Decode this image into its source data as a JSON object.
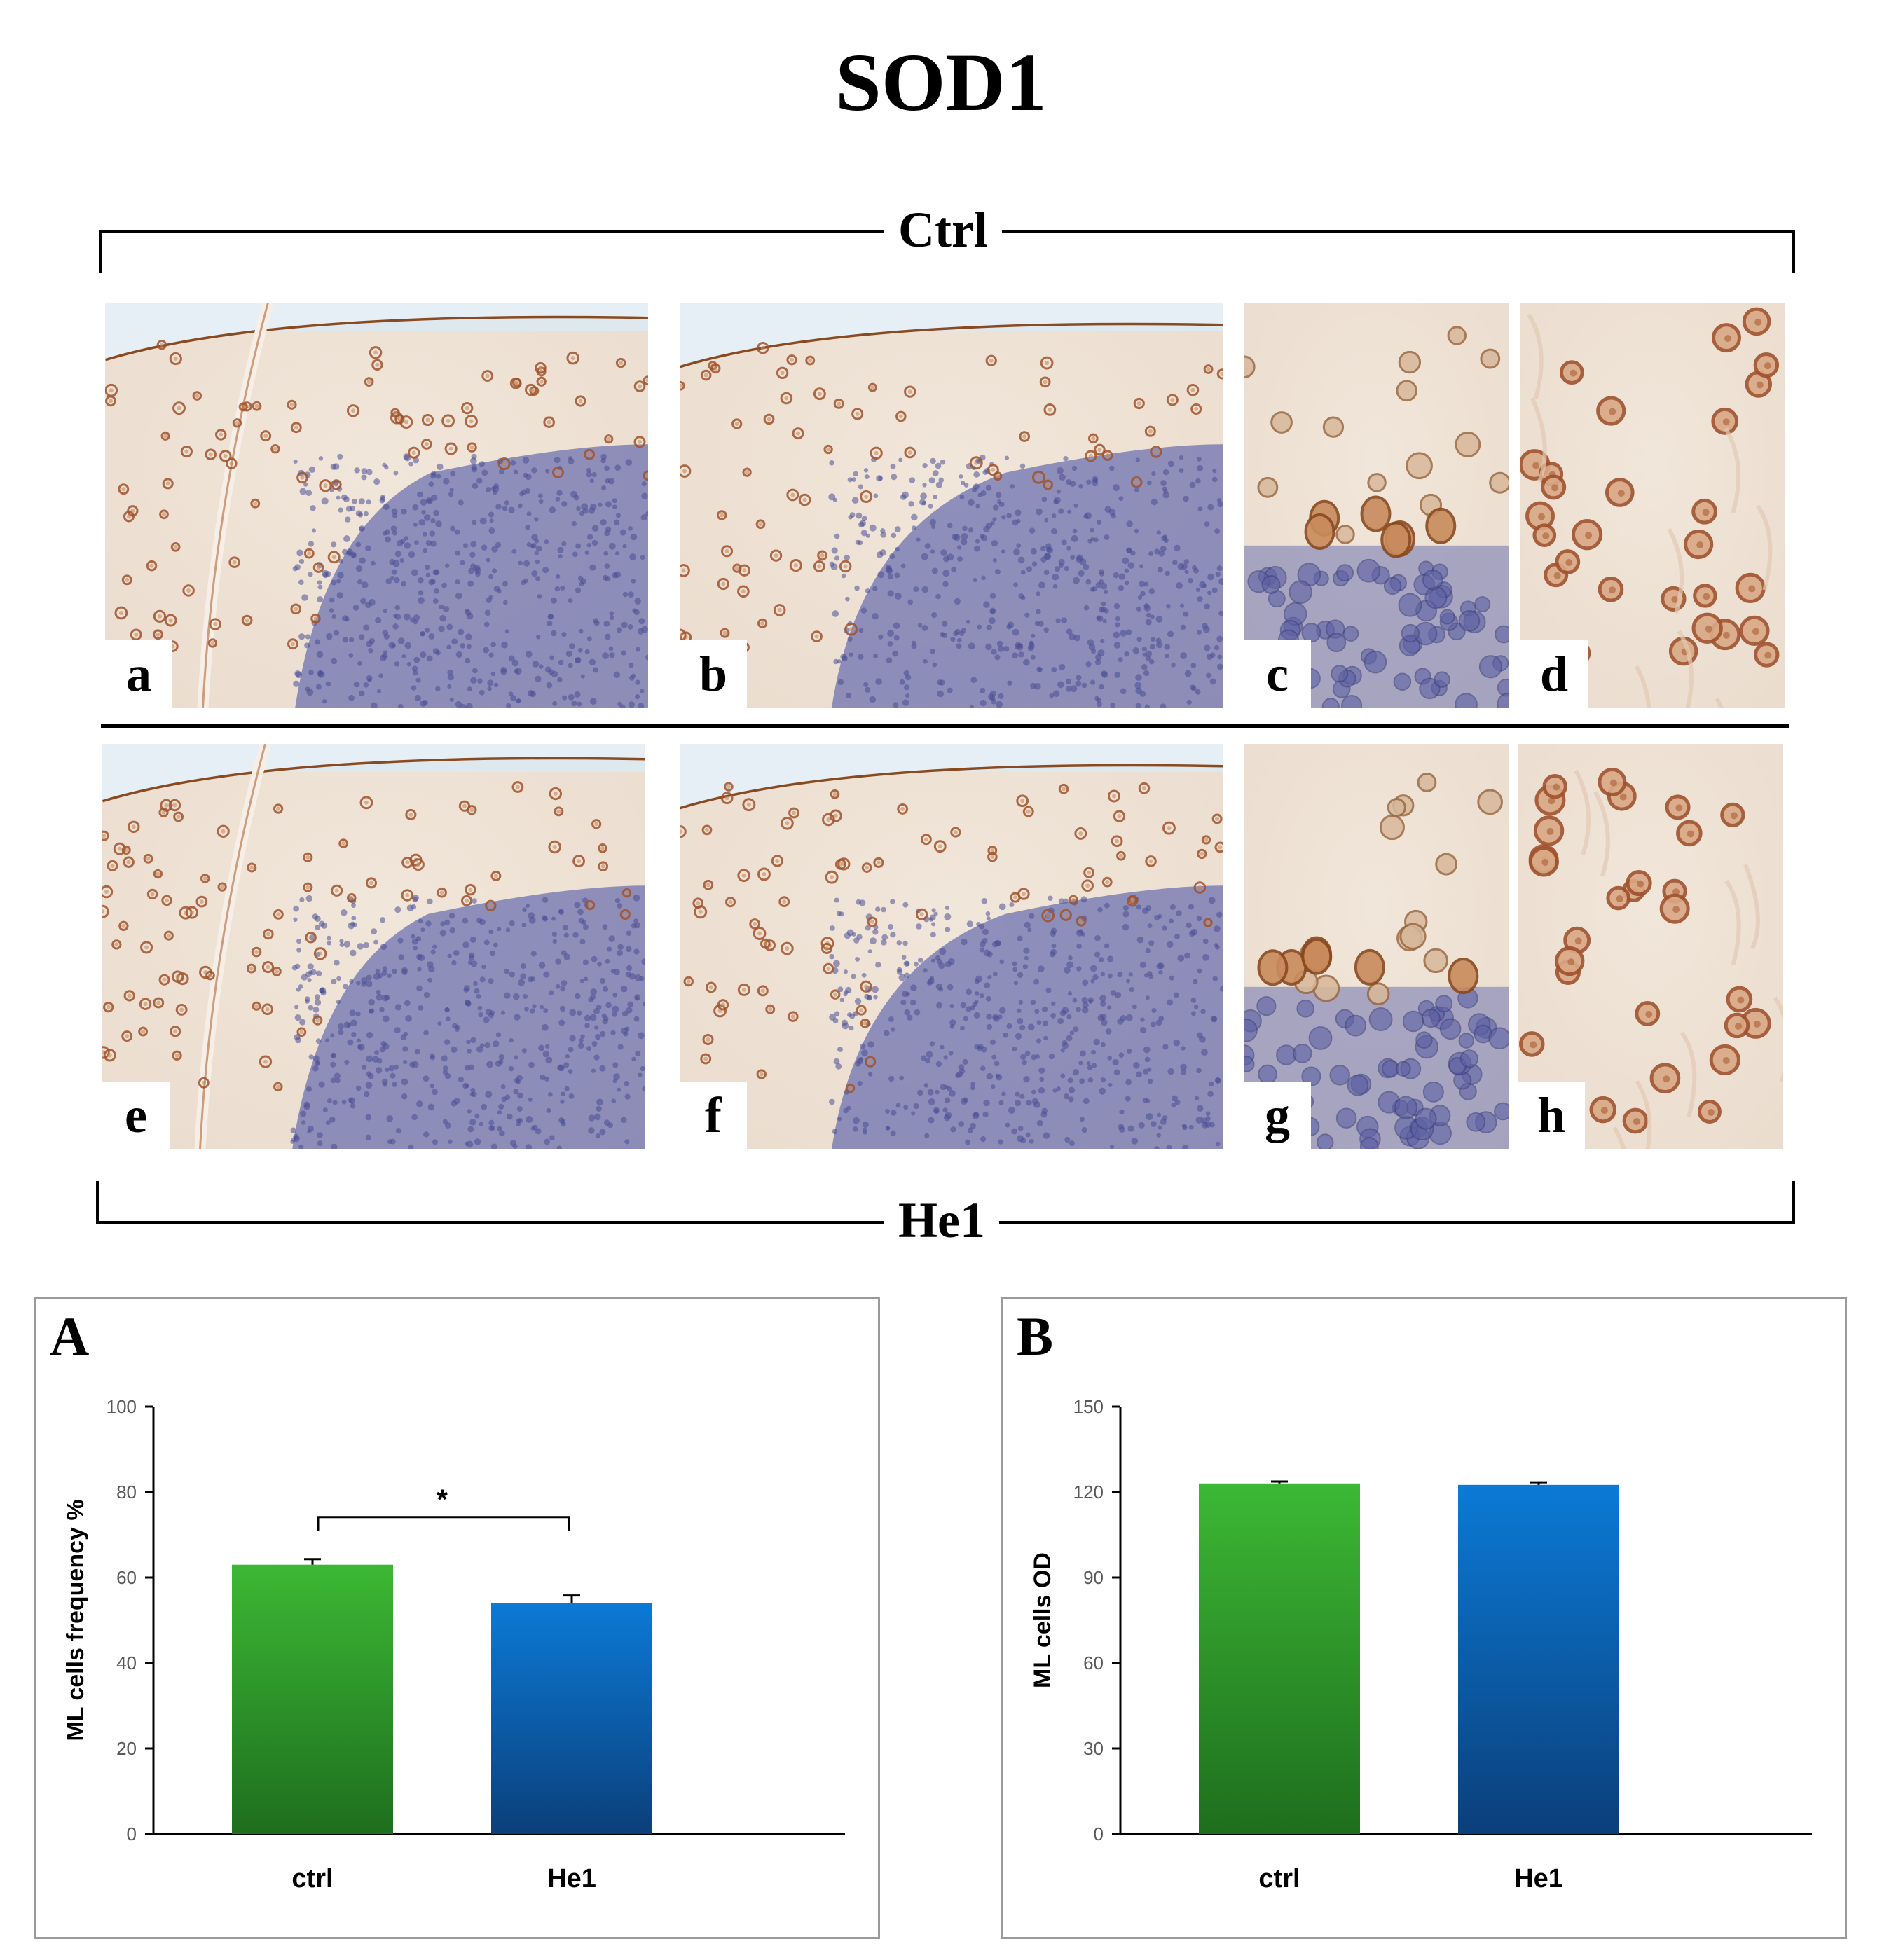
{
  "figure": {
    "title": "SOD1",
    "groups": {
      "top": "Ctrl",
      "bottom": "He1"
    }
  },
  "panels": {
    "row1": [
      {
        "letter": "a",
        "type": "cerebellum-low"
      },
      {
        "letter": "b",
        "type": "cerebellum-low"
      },
      {
        "letter": "c",
        "type": "purkinje-high"
      },
      {
        "letter": "d",
        "type": "molecular-high"
      }
    ],
    "row2": [
      {
        "letter": "e",
        "type": "cerebellum-low"
      },
      {
        "letter": "f",
        "type": "cerebellum-low"
      },
      {
        "letter": "g",
        "type": "purkinje-high"
      },
      {
        "letter": "h",
        "type": "molecular-high"
      }
    ]
  },
  "colors": {
    "tissue": "#eadccd",
    "dab_nucleus": "#a0522d",
    "granular_layer": "#6e72b0",
    "ctrl_bar_top": "#3cb834",
    "ctrl_bar_bottom": "#1e6e1e",
    "he1_bar_top": "#0b7ad6",
    "he1_bar_bottom": "#0b3f7a",
    "axis_tick_text": "#595959"
  },
  "chart_data": [
    {
      "panel_label": "A",
      "type": "bar",
      "categories": [
        "ctrl",
        "He1"
      ],
      "values": [
        63,
        54
      ],
      "errors": [
        1.3,
        1.8
      ],
      "ylabel": "ML cells frequency %",
      "ylim": [
        0,
        100
      ],
      "yticks": [
        "0",
        "20",
        "40",
        "60",
        "80",
        "100"
      ],
      "significance": "*",
      "grid": false
    },
    {
      "panel_label": "B",
      "type": "bar",
      "categories": [
        "ctrl",
        "He1"
      ],
      "values": [
        123,
        122.5
      ],
      "errors": [
        0.7,
        0.9
      ],
      "ylabel": "ML cells OD",
      "ylim": [
        0,
        150
      ],
      "yticks": [
        "0",
        "30",
        "60",
        "90",
        "120",
        "150"
      ],
      "grid": false
    }
  ]
}
